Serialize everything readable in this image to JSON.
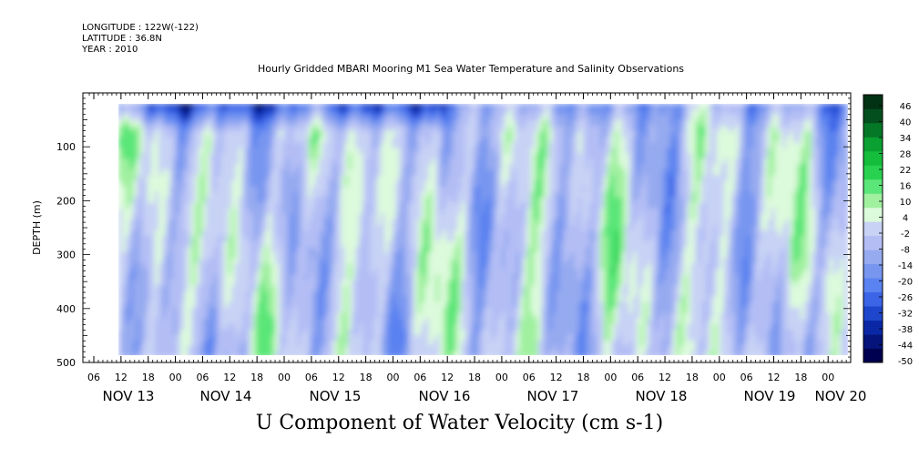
{
  "header": {
    "longitude": "LONGITUDE : 122W(-122)",
    "latitude": "LATITUDE : 36.8N",
    "year": "YEAR : 2010",
    "title": "Hourly Gridded MBARI Mooring M1 Sea Water Temperature and Salinity Observations"
  },
  "caption": "U Component of Water Velocity (cm s-1)",
  "chart_data": {
    "type": "heatmap",
    "title": "Hourly Gridded MBARI Mooring M1 Sea Water Temperature and Salinity Observations",
    "xlabel": "",
    "ylabel": "DEPTH (m)",
    "ylim": [
      500,
      0
    ],
    "y_ticks": [
      100,
      200,
      300,
      400,
      500
    ],
    "data_depth_range": [
      20,
      490
    ],
    "x_hour_ticks": [
      "06",
      "12",
      "18",
      "00",
      "06",
      "12",
      "18",
      "00",
      "06",
      "12",
      "18",
      "00",
      "06",
      "12",
      "18",
      "00",
      "06",
      "12",
      "18",
      "00",
      "06",
      "12",
      "18",
      "00",
      "06",
      "12",
      "18",
      "00"
    ],
    "x_day_labels": [
      "NOV 13",
      "NOV 14",
      "NOV 15",
      "NOV 16",
      "NOV 17",
      "NOV 18",
      "NOV 19",
      "NOV 20"
    ],
    "colorbar": {
      "labels": [
        "46",
        "40",
        "34",
        "28",
        "22",
        "16",
        "10",
        "4",
        "-2",
        "-8",
        "-14",
        "-20",
        "-26",
        "-32",
        "-38",
        "-44",
        "-50"
      ],
      "min": -50,
      "max": 49,
      "colors": [
        "#000050",
        "#05147a",
        "#0a28a6",
        "#1e46cc",
        "#3c64e6",
        "#5a82f0",
        "#7896f0",
        "#96aaf0",
        "#b4bef5",
        "#c8d2f5",
        "#dcfadc",
        "#a0f0a0",
        "#5ae678",
        "#28d250",
        "#14be3c",
        "#0aa032",
        "#057828",
        "#034f1e",
        "#013214"
      ]
    },
    "series_description_free": true,
    "depth_profiles": [
      {
        "depth": 25,
        "u_range": [
          -40,
          -10
        ]
      },
      {
        "depth": 100,
        "u_range": [
          -20,
          20
        ]
      },
      {
        "depth": 250,
        "u_range": [
          -15,
          25
        ]
      },
      {
        "depth": 400,
        "u_range": [
          -15,
          25
        ]
      }
    ]
  }
}
